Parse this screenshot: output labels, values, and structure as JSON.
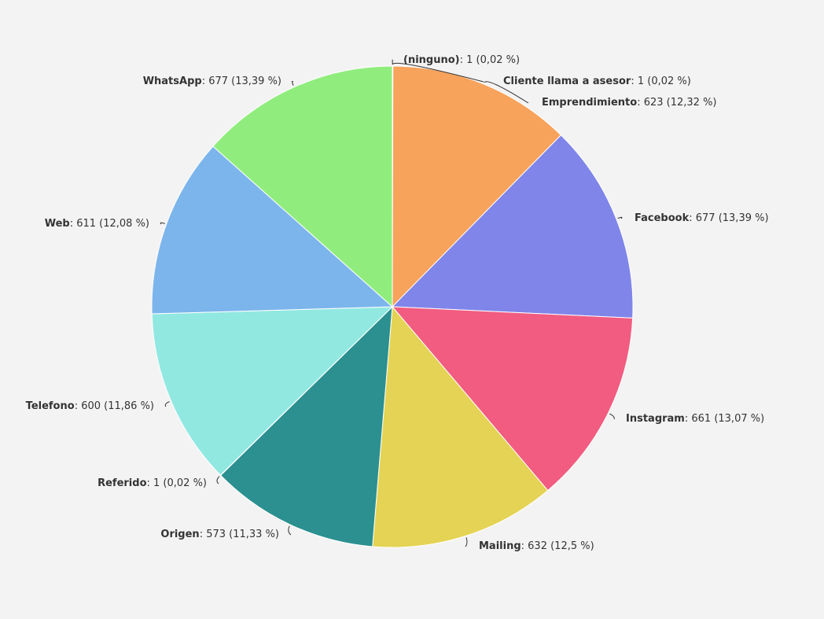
{
  "chart_data": {
    "type": "pie",
    "title": "",
    "legend": "none",
    "colors": {
      "label_text": "#333333",
      "leader_line": "#333333",
      "slice_border": "#ffffff",
      "background": "#f3f3f3"
    },
    "slices": [
      {
        "name": "(ninguno)",
        "value": 1,
        "percent_label": "(0,02 %)",
        "color": "#f7a35c"
      },
      {
        "name": "Cliente llama a asesor",
        "value": 1,
        "percent_label": "(0,02 %)",
        "color": "#f7a35c"
      },
      {
        "name": "Emprendimiento",
        "value": 623,
        "percent_label": "(12,32 %)",
        "color": "#f7a35c"
      },
      {
        "name": "Facebook",
        "value": 677,
        "percent_label": "(13,39 %)",
        "color": "#8085e9"
      },
      {
        "name": "Instagram",
        "value": 661,
        "percent_label": "(13,07 %)",
        "color": "#f15c80"
      },
      {
        "name": "Mailing",
        "value": 632,
        "percent_label": "(12,5 %)",
        "color": "#e4d354"
      },
      {
        "name": "Origen",
        "value": 573,
        "percent_label": "(11,33 %)",
        "color": "#2b908f"
      },
      {
        "name": "Referido",
        "value": 1,
        "percent_label": "(0,02 %)",
        "color": "#f45b5b"
      },
      {
        "name": "Telefono",
        "value": 600,
        "percent_label": "(11,86 %)",
        "color": "#91e8e1"
      },
      {
        "name": "Web",
        "value": 611,
        "percent_label": "(12,08 %)",
        "color": "#7cb5ec"
      },
      {
        "name": "WhatsApp",
        "value": 677,
        "percent_label": "(13,39 %)",
        "color": "#90ed7d"
      }
    ]
  }
}
